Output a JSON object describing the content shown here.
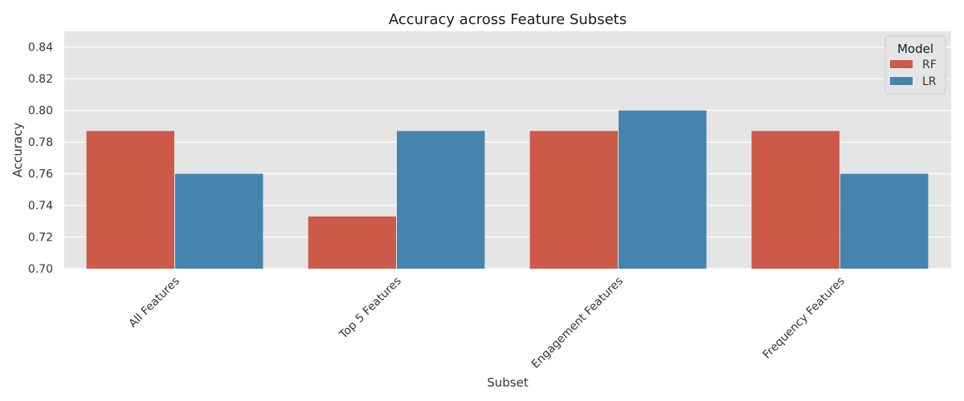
{
  "chart_data": {
    "type": "bar",
    "title": "Accuracy across Feature Subsets",
    "xlabel": "Subset",
    "ylabel": "Accuracy",
    "categories": [
      "All Features",
      "Top 5 Features",
      "Engagement Features",
      "Frequency Features"
    ],
    "series": [
      {
        "name": "RF",
        "values": [
          0.787,
          0.733,
          0.787,
          0.787
        ]
      },
      {
        "name": "LR",
        "values": [
          0.76,
          0.787,
          0.8,
          0.76
        ]
      }
    ],
    "ylim": [
      0.7,
      0.85
    ],
    "yticks": [
      "0.70",
      "0.72",
      "0.74",
      "0.76",
      "0.78",
      "0.80",
      "0.82",
      "0.84"
    ],
    "legend_title": "Model",
    "legend_position": "top-right",
    "grid": true,
    "colors": {
      "RF": "#cd5a49",
      "LR": "#4585ad",
      "plot_background": "#e5e5e5",
      "grid": "#ffffff"
    }
  }
}
